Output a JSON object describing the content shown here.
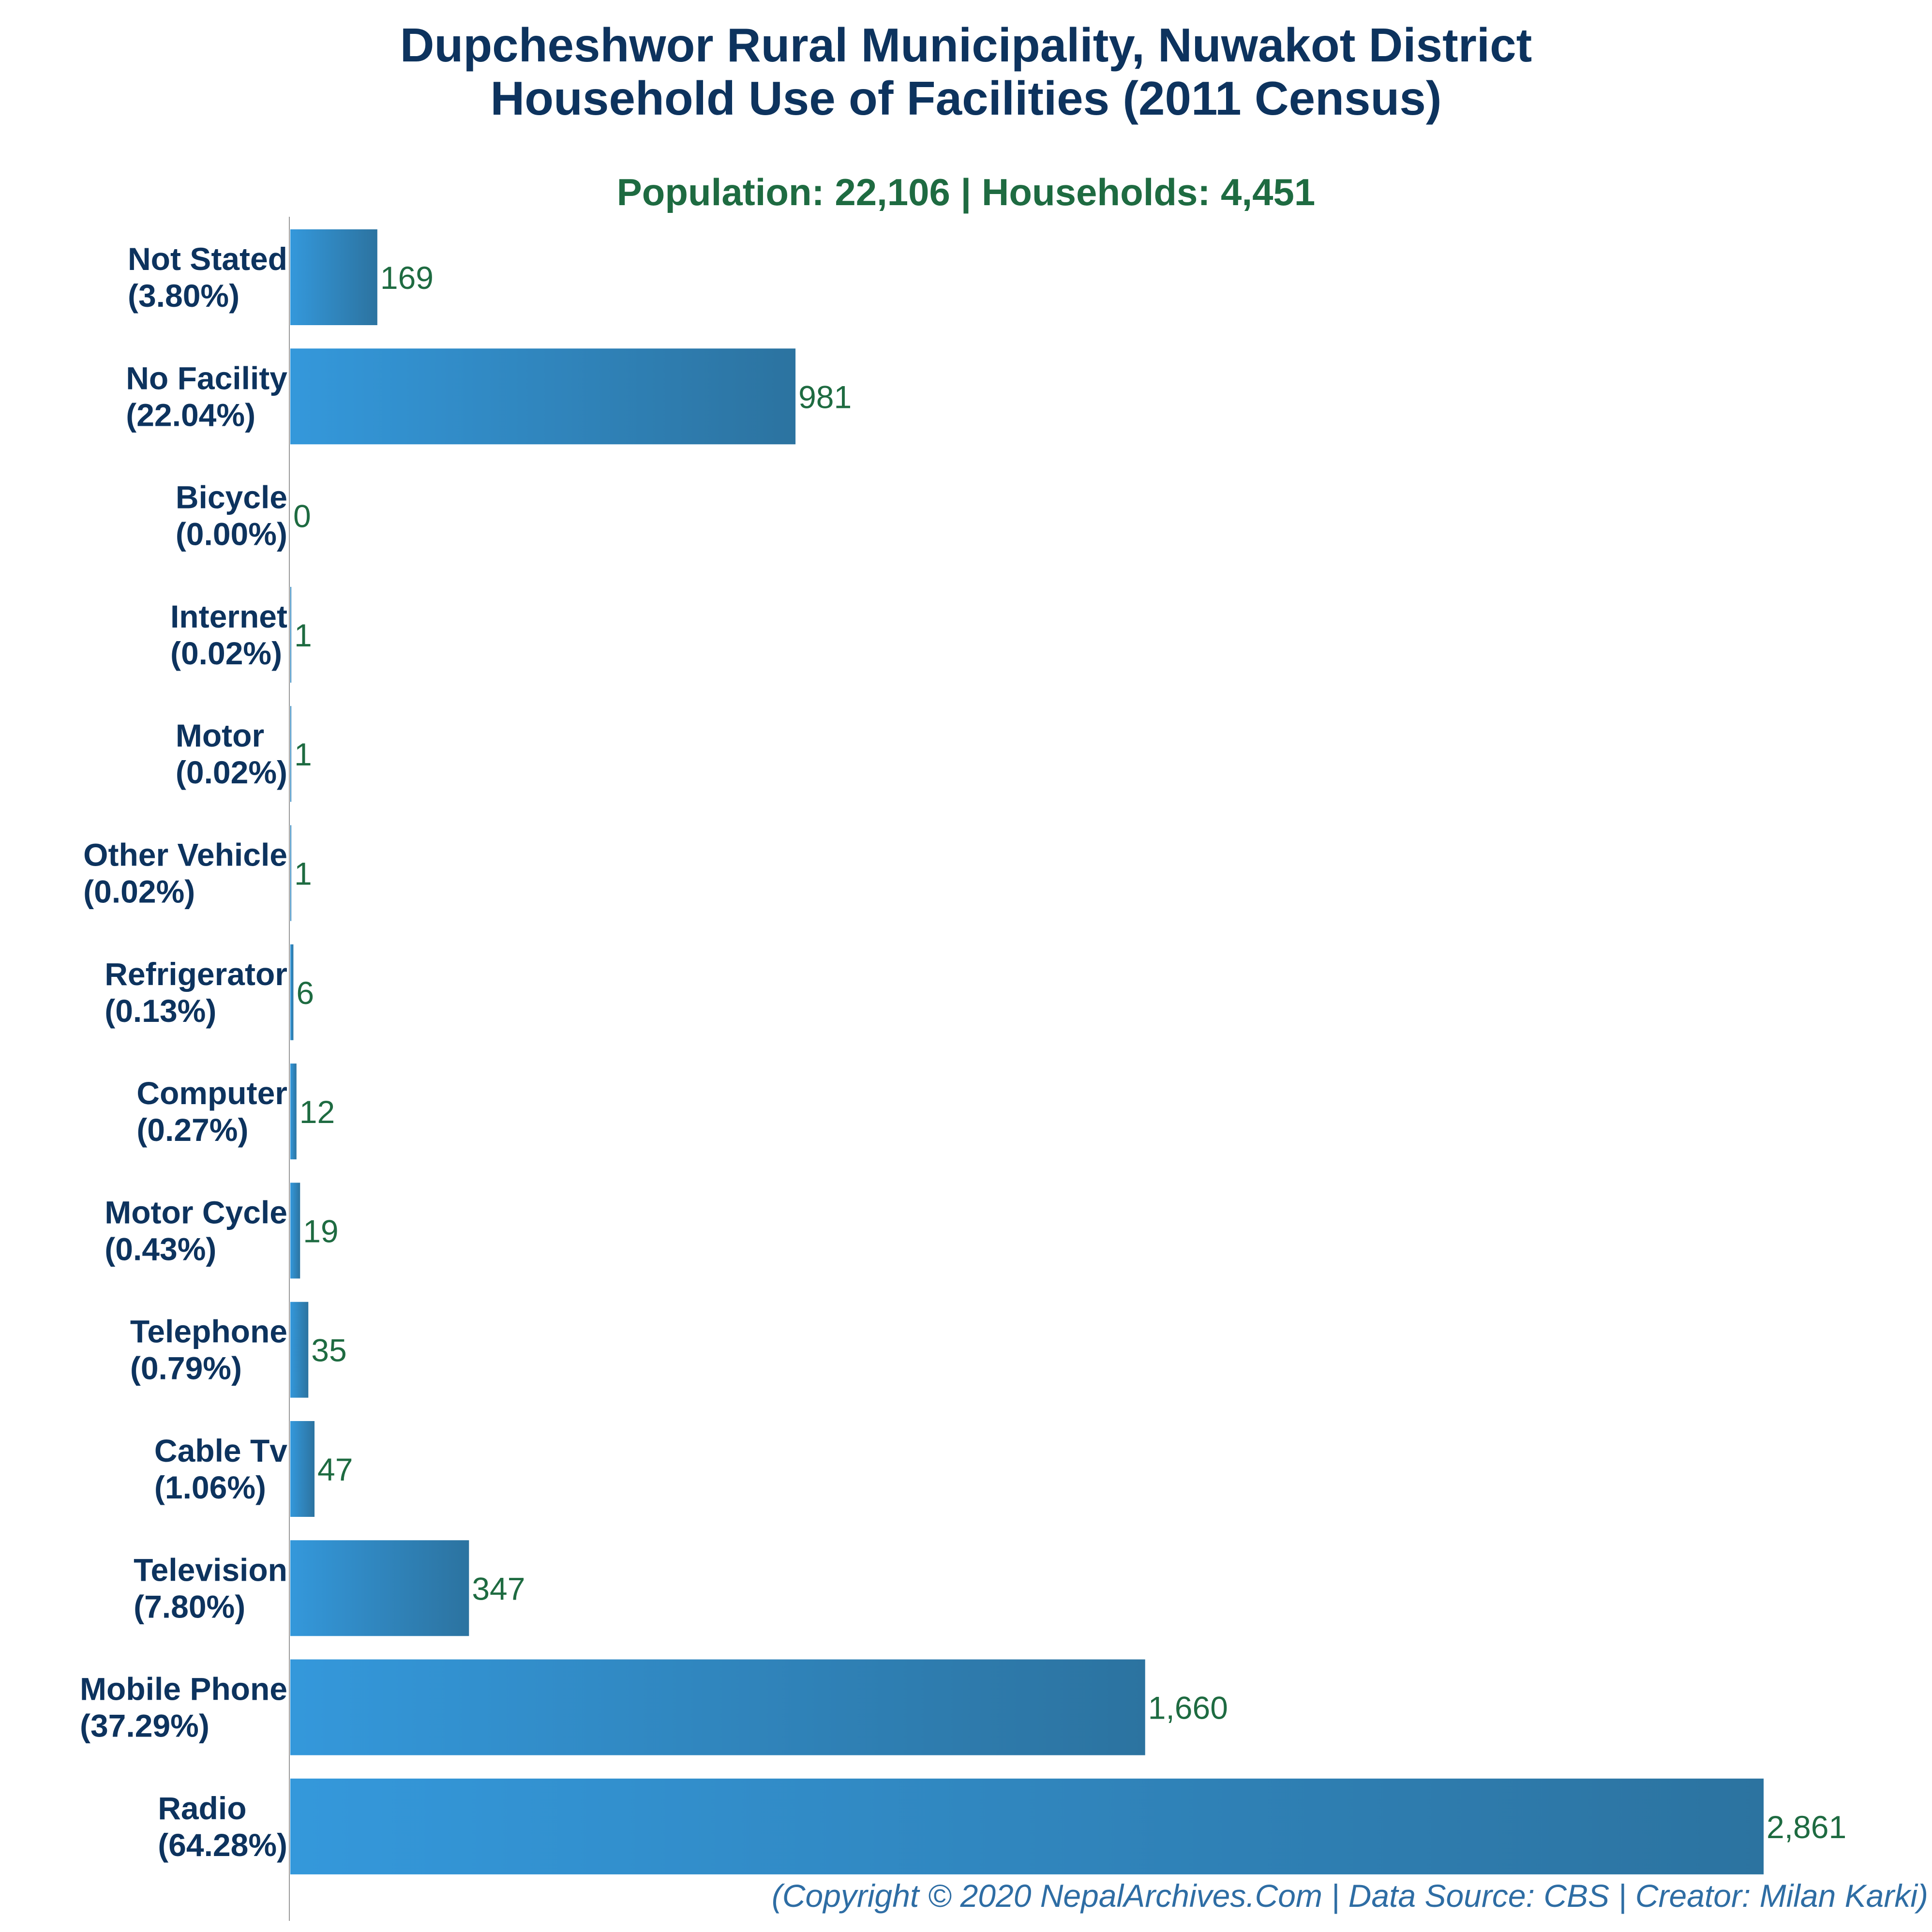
{
  "colors": {
    "title": "#0d335e",
    "subtitle": "#1e6b41",
    "bar_start": "#3498db",
    "bar_end": "#2c73a0",
    "value_label": "#1e6b41",
    "footer": "#2e6da4",
    "axis": "#999999"
  },
  "chart_data": {
    "type": "bar",
    "orientation": "horizontal",
    "title_line1": "Dupcheshwor Rural Municipality, Nuwakot District",
    "title_line2": "Household Use of Facilities (2011 Census)",
    "subtitle": "Population: 22,106 | Households: 4,451",
    "footer": "(Copyright © 2020 NepalArchives.Com | Data Source: CBS | Creator: Milan Karki)",
    "xlim": [
      0,
      2861
    ],
    "grid": false,
    "bars": [
      {
        "name": "Not Stated",
        "percent": "(3.80%)",
        "value": 169,
        "value_label": "169"
      },
      {
        "name": "No Facility",
        "percent": "(22.04%)",
        "value": 981,
        "value_label": "981"
      },
      {
        "name": "Bicycle",
        "percent": "(0.00%)",
        "value": 0,
        "value_label": "0"
      },
      {
        "name": "Internet",
        "percent": "(0.02%)",
        "value": 1,
        "value_label": "1"
      },
      {
        "name": "Motor",
        "percent": "(0.02%)",
        "value": 1,
        "value_label": "1"
      },
      {
        "name": "Other Vehicle",
        "percent": "(0.02%)",
        "value": 1,
        "value_label": "1"
      },
      {
        "name": "Refrigerator",
        "percent": "(0.13%)",
        "value": 6,
        "value_label": "6"
      },
      {
        "name": "Computer",
        "percent": "(0.27%)",
        "value": 12,
        "value_label": "12"
      },
      {
        "name": "Motor Cycle",
        "percent": "(0.43%)",
        "value": 19,
        "value_label": "19"
      },
      {
        "name": "Telephone",
        "percent": "(0.79%)",
        "value": 35,
        "value_label": "35"
      },
      {
        "name": "Cable Tv",
        "percent": "(1.06%)",
        "value": 47,
        "value_label": "47"
      },
      {
        "name": "Television",
        "percent": "(7.80%)",
        "value": 347,
        "value_label": "347"
      },
      {
        "name": "Mobile Phone",
        "percent": "(37.29%)",
        "value": 1660,
        "value_label": "1,660"
      },
      {
        "name": "Radio",
        "percent": "(64.28%)",
        "value": 2861,
        "value_label": "2,861"
      }
    ]
  }
}
